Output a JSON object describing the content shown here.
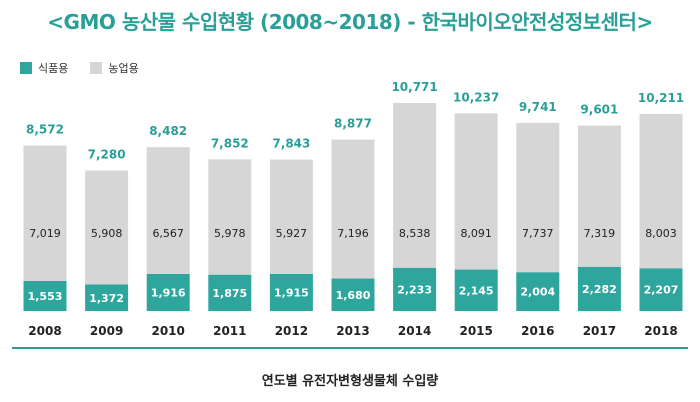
{
  "title": "<GMO 농산물 수입현황 (2008~2018) - 한국바이오안전성정보센터>",
  "caption": "연도별 유전자변형생물체 수입량",
  "legend": [
    {
      "label": "식품용",
      "color": "#2ea69e"
    },
    {
      "label": "농업용",
      "color": "#d6d6d6"
    }
  ],
  "chart_data": {
    "type": "bar",
    "stacked": true,
    "categories": [
      "2008",
      "2009",
      "2010",
      "2011",
      "2012",
      "2013",
      "2014",
      "2015",
      "2016",
      "2017",
      "2018"
    ],
    "series": [
      {
        "name": "식품용",
        "color": "#2ea69e",
        "values": [
          1553,
          1372,
          1916,
          1875,
          1915,
          1680,
          2233,
          2145,
          2004,
          2282,
          2207
        ],
        "labels": [
          "1,553",
          "1,372",
          "1,916",
          "1,875",
          "1,915",
          "1,680",
          "2,233",
          "2,145",
          "2,004",
          "2,282",
          "2,207"
        ]
      },
      {
        "name": "농업용",
        "color": "#d6d6d6",
        "values": [
          7019,
          5908,
          6567,
          5978,
          5927,
          7196,
          8538,
          8091,
          7737,
          7319,
          8003
        ],
        "labels": [
          "7,019",
          "5,908",
          "6,567",
          "5,978",
          "5,927",
          "7,196",
          "8,538",
          "8,091",
          "7,737",
          "7,319",
          "8,003"
        ]
      }
    ],
    "totals": [
      8572,
      7280,
      8482,
      7852,
      7843,
      8877,
      10771,
      10237,
      9741,
      9601,
      10211
    ],
    "total_labels": [
      "8,572",
      "7,280",
      "8,482",
      "7,852",
      "7,843",
      "8,877",
      "10,771",
      "10,237",
      "9,741",
      "9,601",
      "10,211"
    ],
    "ylim": [
      0,
      10771
    ],
    "grid": false,
    "legend_position": "top-left",
    "total_label_color": "#2a9f98",
    "bar_label_color_inner": "#ffffff",
    "bar_label_color_upper": "#222222",
    "axis_color": "#2a9f98"
  }
}
